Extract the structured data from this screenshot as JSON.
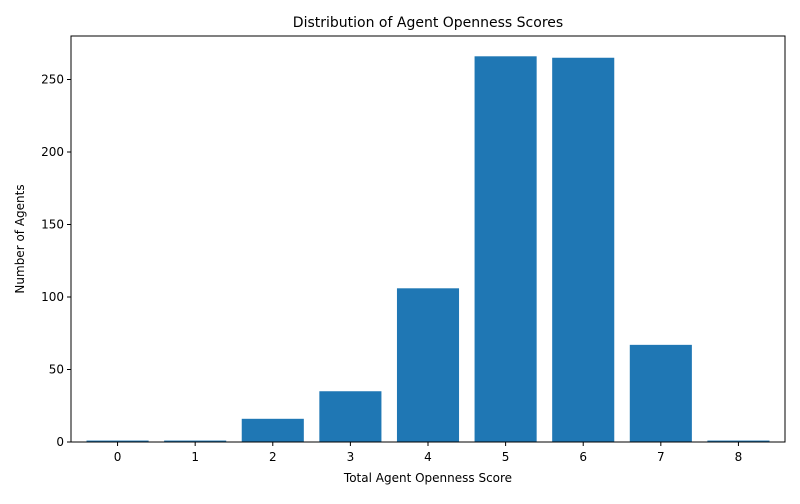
{
  "chart_data": {
    "type": "bar",
    "title": "Distribution of Agent Openness Scores",
    "xlabel": "Total Agent Openness Score",
    "ylabel": "Number of Agents",
    "categories": [
      "0",
      "1",
      "2",
      "3",
      "4",
      "5",
      "6",
      "7",
      "8"
    ],
    "values": [
      1,
      1,
      16,
      35,
      106,
      266,
      265,
      67,
      1
    ],
    "ylim": [
      0,
      280
    ],
    "yticks": [
      "0",
      "50",
      "100",
      "150",
      "200",
      "250"
    ],
    "bar_color": "#1f77b4",
    "grid": false,
    "legend": "none"
  }
}
